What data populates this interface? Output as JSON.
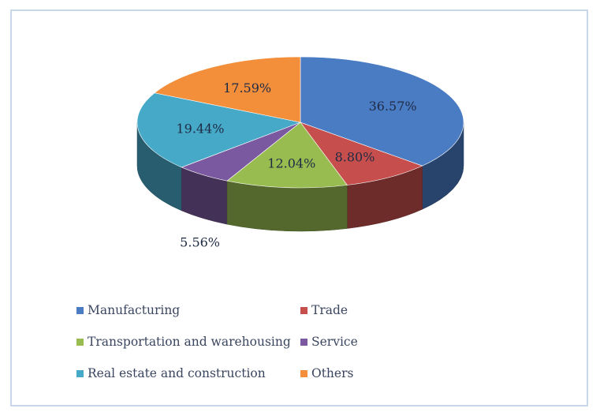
{
  "chart_data": {
    "type": "pie",
    "title": "",
    "categories": [
      "Manufacturing",
      "Trade",
      "Transportation and warehousing",
      "Service",
      "Real estate and construction",
      "Others"
    ],
    "values": [
      36.57,
      8.8,
      12.04,
      5.56,
      19.44,
      17.59
    ],
    "labels": [
      "36.57%",
      "8.80%",
      "12.04%",
      "5.56%",
      "19.44%",
      "17.59%"
    ],
    "colors": [
      "#4a7cc4",
      "#c64f4d",
      "#98bc50",
      "#7b59a0",
      "#46a9c8",
      "#f38f3a"
    ],
    "style": "3d",
    "legend_position": "bottom"
  }
}
